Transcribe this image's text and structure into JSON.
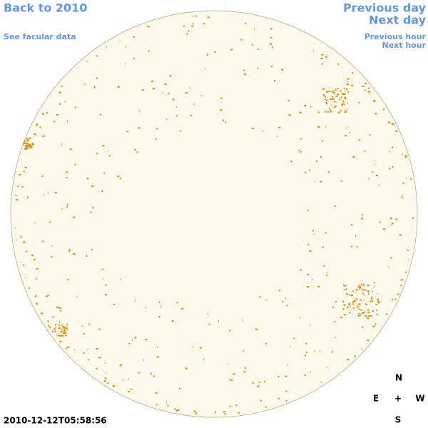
{
  "nav": {
    "back": "Back to 2010",
    "previous_day": "Previous day",
    "next_day": "Next day",
    "facular": "See facular data",
    "previous_hour": "Previous hour",
    "next_hour": "Next hour"
  },
  "timestamp": "2010-12-12T05:58:56",
  "compass": {
    "north": "N",
    "east": "E",
    "center": "+",
    "west": "W",
    "south": "S"
  }
}
